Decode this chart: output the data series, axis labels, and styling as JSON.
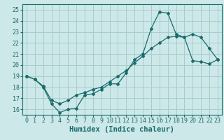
{
  "xlabel": "Humidex (Indice chaleur)",
  "bg_color": "#cce8e8",
  "grid_color": "#aacccc",
  "line_color": "#1a6b6b",
  "xlim": [
    -0.5,
    23.5
  ],
  "ylim": [
    15.5,
    25.5
  ],
  "yticks": [
    16,
    17,
    18,
    19,
    20,
    21,
    22,
    23,
    24,
    25
  ],
  "xticks": [
    0,
    1,
    2,
    3,
    4,
    5,
    6,
    7,
    8,
    9,
    10,
    11,
    12,
    13,
    14,
    15,
    16,
    17,
    18,
    19,
    20,
    21,
    22,
    23
  ],
  "line1_x": [
    0,
    1,
    2,
    3,
    4,
    5,
    6,
    7,
    8,
    9,
    10,
    11,
    12,
    13,
    14,
    15,
    16,
    17,
    18,
    19,
    20,
    21,
    22,
    23
  ],
  "line1_y": [
    19.0,
    18.7,
    18.0,
    16.5,
    15.7,
    16.0,
    16.1,
    17.3,
    17.4,
    17.8,
    18.3,
    18.3,
    19.3,
    20.5,
    21.0,
    23.3,
    24.8,
    24.7,
    22.8,
    22.5,
    22.8,
    22.5,
    21.5,
    20.5
  ],
  "line2_x": [
    0,
    1,
    2,
    3,
    4,
    5,
    6,
    7,
    8,
    9,
    10,
    11,
    12,
    13,
    14,
    15,
    16,
    17,
    18,
    19,
    20,
    21,
    22,
    23
  ],
  "line2_y": [
    19.0,
    18.7,
    18.1,
    16.8,
    16.5,
    16.8,
    17.3,
    17.5,
    17.8,
    18.0,
    18.5,
    19.0,
    19.5,
    20.2,
    20.8,
    21.5,
    22.0,
    22.5,
    22.6,
    22.5,
    20.4,
    20.3,
    20.1,
    20.5
  ],
  "font_color": "#1a6b6b",
  "tick_fontsize": 6,
  "label_fontsize": 7.5
}
